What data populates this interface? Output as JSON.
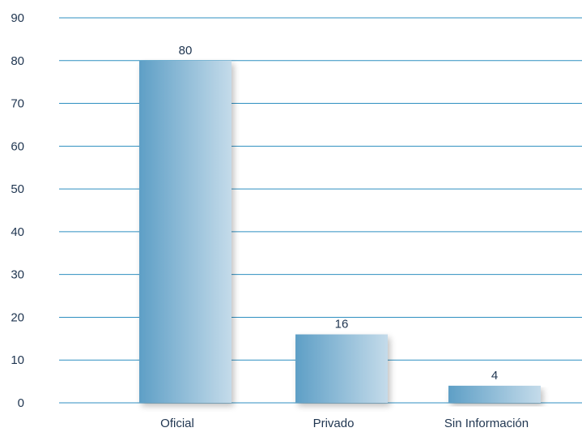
{
  "chart_data": {
    "type": "bar",
    "title": "",
    "xlabel": "",
    "ylabel": "",
    "categories": [
      "Oficial",
      "Privado",
      "Sin Información"
    ],
    "values": [
      80,
      16,
      4
    ],
    "data_labels": [
      "80",
      "16",
      "4"
    ],
    "ylim": [
      0,
      90
    ],
    "yticks": [
      0,
      10,
      20,
      30,
      40,
      50,
      60,
      70,
      80,
      90
    ],
    "ytick_labels": [
      "0",
      "10",
      "20",
      "30",
      "40",
      "50",
      "60",
      "70",
      "80",
      "90"
    ],
    "grid": true,
    "legend": "none",
    "colors": {
      "bar_start": "#5e9fc6",
      "bar_end": "#c4dbea",
      "grid": "#2f8fc0",
      "text": "#1f3550"
    }
  }
}
